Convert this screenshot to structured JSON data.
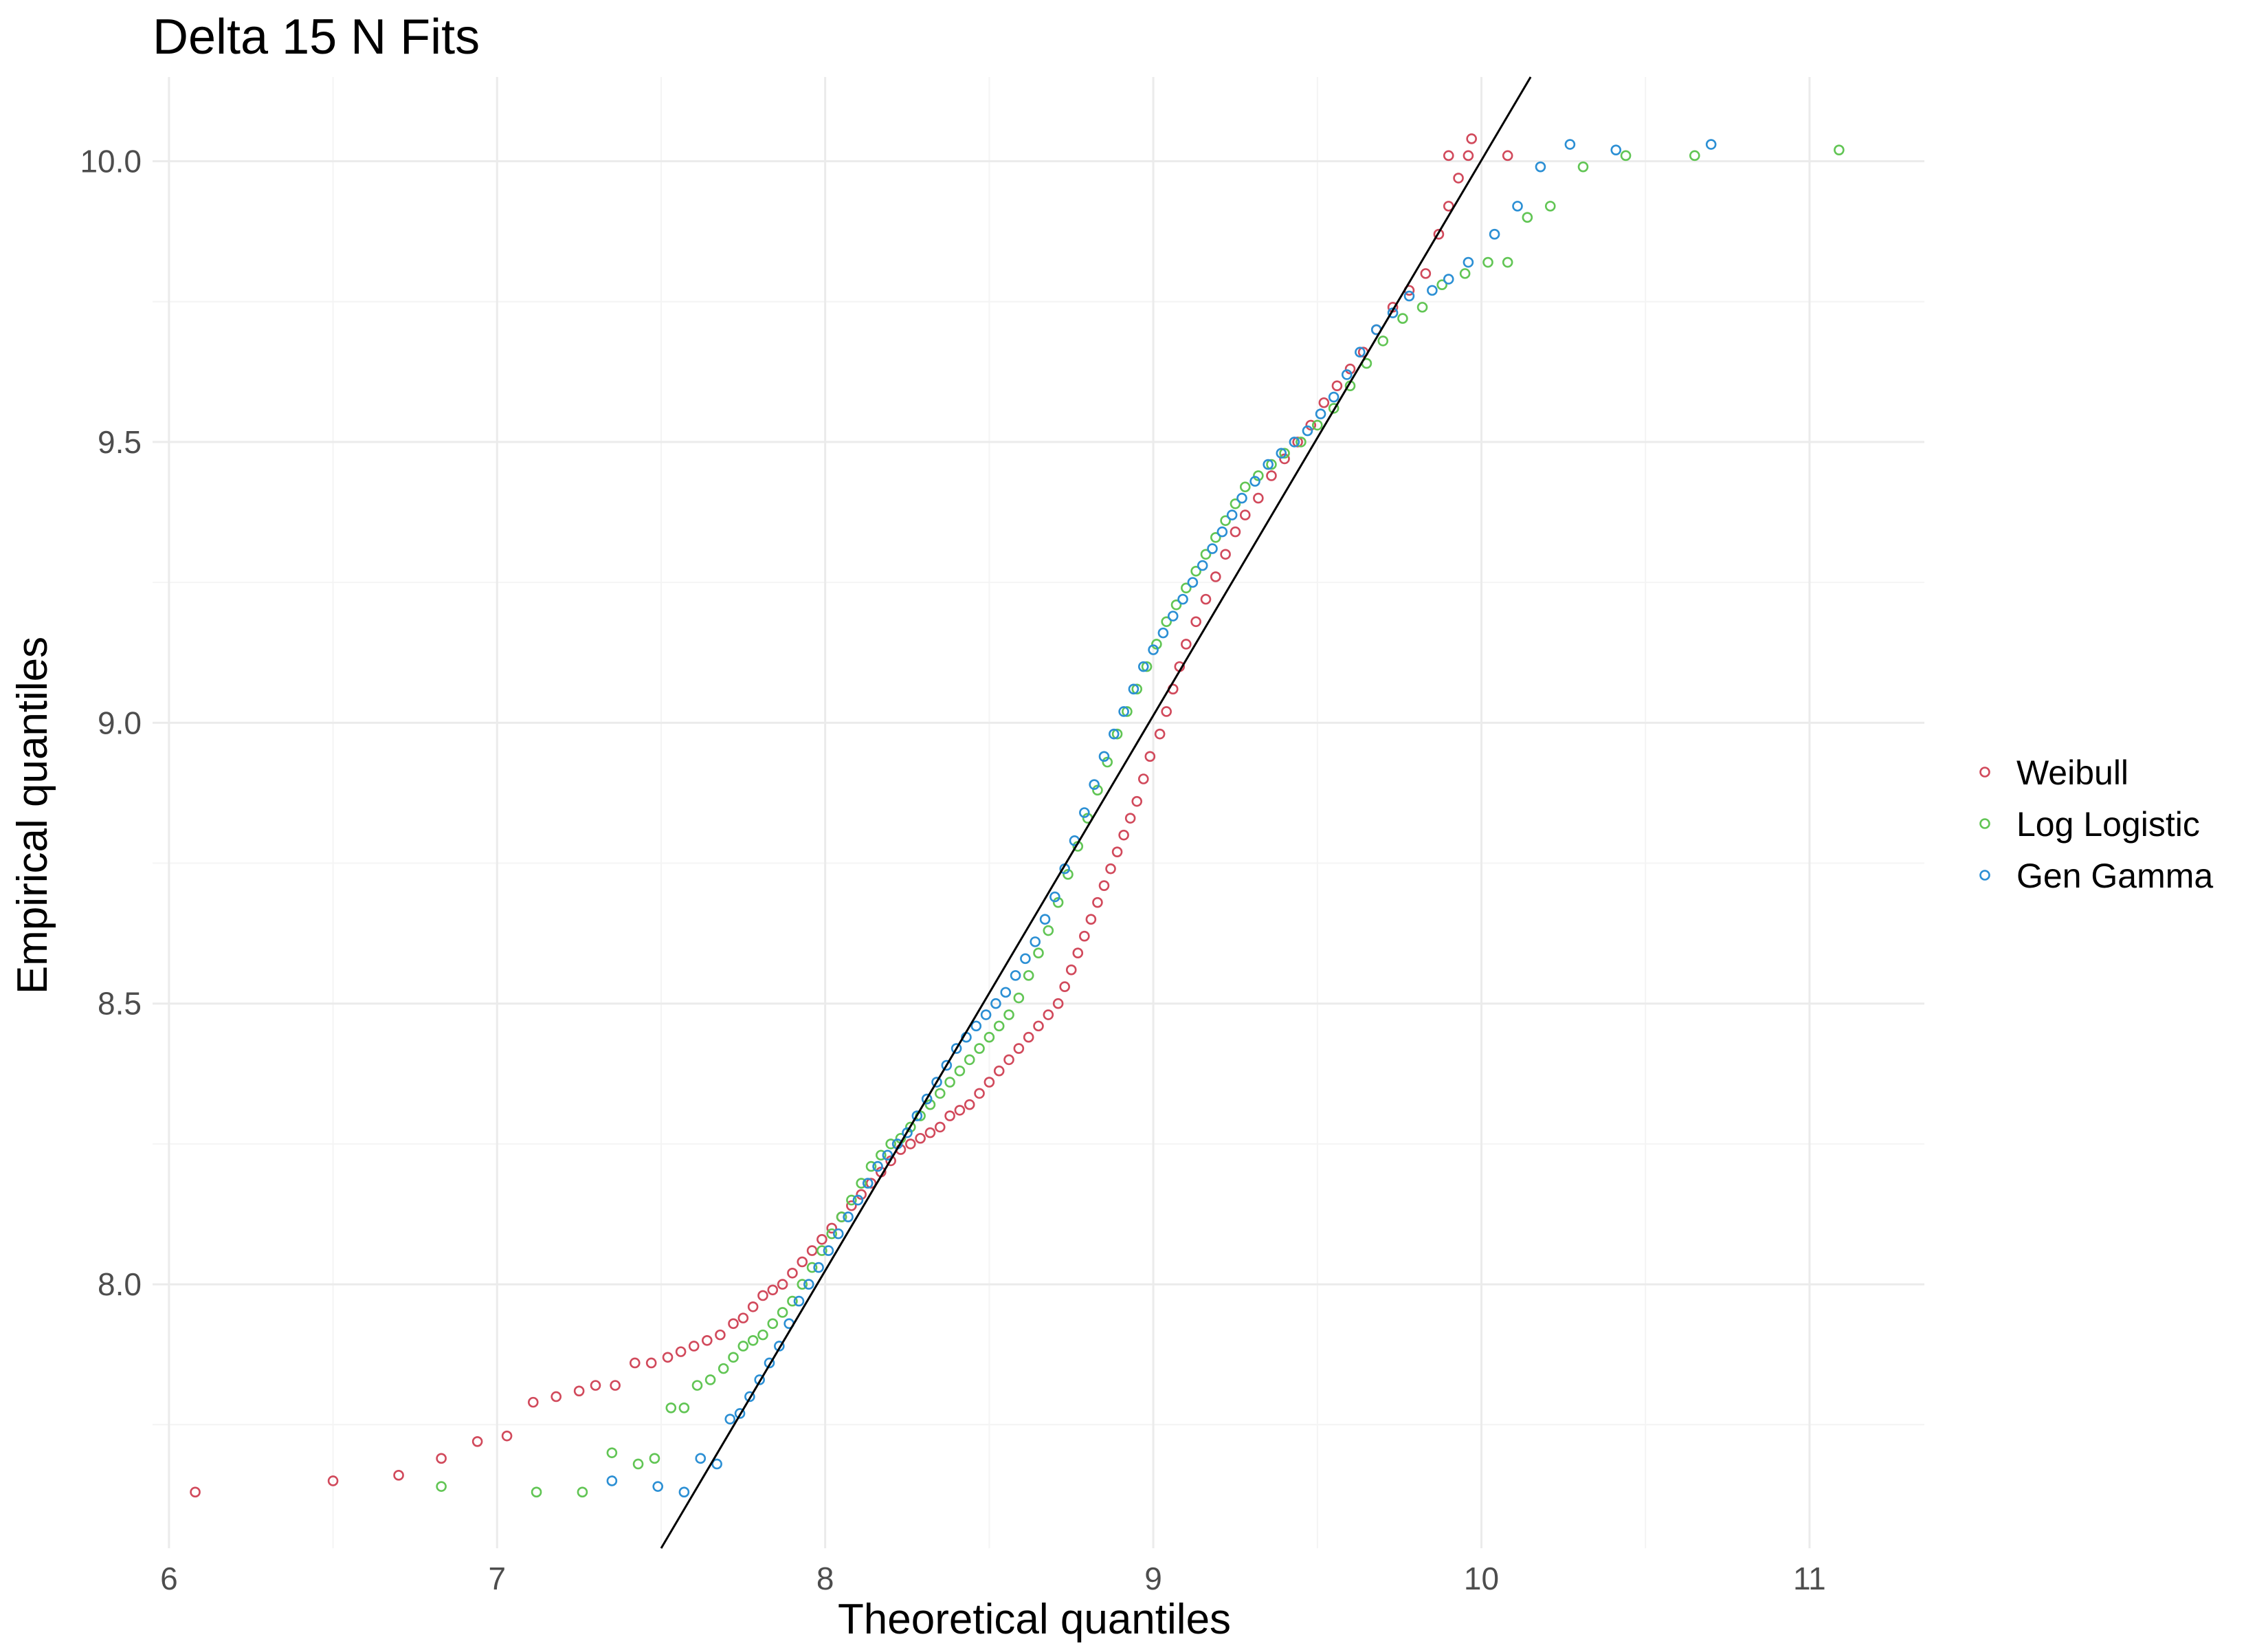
{
  "chart_data": {
    "type": "scatter",
    "title": "Delta 15 N Fits",
    "xlabel": "Theoretical quantiles",
    "ylabel": "Empirical quantiles",
    "xlim": [
      5.95,
      11.35
    ],
    "ylim": [
      7.53,
      10.15
    ],
    "x_ticks": [
      6,
      7,
      8,
      9,
      10,
      11
    ],
    "x_tick_labels": [
      "6",
      "7",
      "8",
      "9",
      "10",
      "11"
    ],
    "y_ticks": [
      8.0,
      8.5,
      9.0,
      9.5,
      10.0
    ],
    "y_tick_labels": [
      "8.0",
      "8.5",
      "9.0",
      "9.5",
      "10.0"
    ],
    "grid": true,
    "legend_position": "right",
    "reference_line": {
      "color": "#000000",
      "x": [
        7.5,
        10.15
      ],
      "y": [
        7.53,
        10.15
      ]
    },
    "series": [
      {
        "name": "Weibull",
        "color": "#d1495b",
        "points": [
          [
            6.08,
            7.63
          ],
          [
            6.5,
            7.65
          ],
          [
            6.7,
            7.66
          ],
          [
            6.83,
            7.69
          ],
          [
            6.94,
            7.72
          ],
          [
            7.03,
            7.73
          ],
          [
            7.11,
            7.79
          ],
          [
            7.18,
            7.8
          ],
          [
            7.25,
            7.81
          ],
          [
            7.3,
            7.82
          ],
          [
            7.36,
            7.82
          ],
          [
            7.42,
            7.86
          ],
          [
            7.47,
            7.86
          ],
          [
            7.52,
            7.87
          ],
          [
            7.56,
            7.88
          ],
          [
            7.6,
            7.89
          ],
          [
            7.64,
            7.9
          ],
          [
            7.68,
            7.91
          ],
          [
            7.72,
            7.93
          ],
          [
            7.75,
            7.94
          ],
          [
            7.78,
            7.96
          ],
          [
            7.81,
            7.98
          ],
          [
            7.84,
            7.99
          ],
          [
            7.87,
            8.0
          ],
          [
            7.9,
            8.02
          ],
          [
            7.93,
            8.04
          ],
          [
            7.96,
            8.06
          ],
          [
            7.99,
            8.08
          ],
          [
            8.02,
            8.1
          ],
          [
            8.05,
            8.12
          ],
          [
            8.08,
            8.14
          ],
          [
            8.11,
            8.16
          ],
          [
            8.14,
            8.18
          ],
          [
            8.17,
            8.2
          ],
          [
            8.2,
            8.22
          ],
          [
            8.23,
            8.24
          ],
          [
            8.26,
            8.25
          ],
          [
            8.29,
            8.26
          ],
          [
            8.32,
            8.27
          ],
          [
            8.35,
            8.28
          ],
          [
            8.38,
            8.3
          ],
          [
            8.41,
            8.31
          ],
          [
            8.44,
            8.32
          ],
          [
            8.47,
            8.34
          ],
          [
            8.5,
            8.36
          ],
          [
            8.53,
            8.38
          ],
          [
            8.56,
            8.4
          ],
          [
            8.59,
            8.42
          ],
          [
            8.62,
            8.44
          ],
          [
            8.65,
            8.46
          ],
          [
            8.68,
            8.48
          ],
          [
            8.71,
            8.5
          ],
          [
            8.73,
            8.53
          ],
          [
            8.75,
            8.56
          ],
          [
            8.77,
            8.59
          ],
          [
            8.79,
            8.62
          ],
          [
            8.81,
            8.65
          ],
          [
            8.83,
            8.68
          ],
          [
            8.85,
            8.71
          ],
          [
            8.87,
            8.74
          ],
          [
            8.89,
            8.77
          ],
          [
            8.91,
            8.8
          ],
          [
            8.93,
            8.83
          ],
          [
            8.95,
            8.86
          ],
          [
            8.97,
            8.9
          ],
          [
            8.99,
            8.94
          ],
          [
            9.02,
            8.98
          ],
          [
            9.04,
            9.02
          ],
          [
            9.06,
            9.06
          ],
          [
            9.08,
            9.1
          ],
          [
            9.1,
            9.14
          ],
          [
            9.13,
            9.18
          ],
          [
            9.16,
            9.22
          ],
          [
            9.19,
            9.26
          ],
          [
            9.22,
            9.3
          ],
          [
            9.25,
            9.34
          ],
          [
            9.28,
            9.37
          ],
          [
            9.32,
            9.4
          ],
          [
            9.36,
            9.44
          ],
          [
            9.4,
            9.47
          ],
          [
            9.44,
            9.5
          ],
          [
            9.48,
            9.53
          ],
          [
            9.52,
            9.57
          ],
          [
            9.56,
            9.6
          ],
          [
            9.6,
            9.63
          ],
          [
            9.64,
            9.66
          ],
          [
            9.68,
            9.7
          ],
          [
            9.73,
            9.74
          ],
          [
            9.78,
            9.77
          ],
          [
            9.83,
            9.8
          ],
          [
            9.87,
            9.87
          ],
          [
            9.9,
            9.92
          ],
          [
            9.93,
            9.97
          ],
          [
            9.96,
            10.01
          ],
          [
            9.9,
            10.01
          ],
          [
            9.97,
            10.04
          ],
          [
            10.08,
            10.01
          ]
        ]
      },
      {
        "name": "Log Logistic",
        "color": "#61c554",
        "points": [
          [
            6.83,
            7.64
          ],
          [
            7.12,
            7.63
          ],
          [
            7.26,
            7.63
          ],
          [
            7.35,
            7.7
          ],
          [
            7.43,
            7.68
          ],
          [
            7.48,
            7.69
          ],
          [
            7.53,
            7.78
          ],
          [
            7.57,
            7.78
          ],
          [
            7.61,
            7.82
          ],
          [
            7.65,
            7.83
          ],
          [
            7.69,
            7.85
          ],
          [
            7.72,
            7.87
          ],
          [
            7.75,
            7.89
          ],
          [
            7.78,
            7.9
          ],
          [
            7.81,
            7.91
          ],
          [
            7.84,
            7.93
          ],
          [
            7.87,
            7.95
          ],
          [
            7.9,
            7.97
          ],
          [
            7.93,
            8.0
          ],
          [
            7.96,
            8.03
          ],
          [
            7.99,
            8.06
          ],
          [
            8.02,
            8.09
          ],
          [
            8.05,
            8.12
          ],
          [
            8.08,
            8.15
          ],
          [
            8.11,
            8.18
          ],
          [
            8.14,
            8.21
          ],
          [
            8.17,
            8.23
          ],
          [
            8.2,
            8.25
          ],
          [
            8.23,
            8.26
          ],
          [
            8.26,
            8.28
          ],
          [
            8.29,
            8.3
          ],
          [
            8.32,
            8.32
          ],
          [
            8.35,
            8.34
          ],
          [
            8.38,
            8.36
          ],
          [
            8.41,
            8.38
          ],
          [
            8.44,
            8.4
          ],
          [
            8.47,
            8.42
          ],
          [
            8.5,
            8.44
          ],
          [
            8.53,
            8.46
          ],
          [
            8.56,
            8.48
          ],
          [
            8.59,
            8.51
          ],
          [
            8.62,
            8.55
          ],
          [
            8.65,
            8.59
          ],
          [
            8.68,
            8.63
          ],
          [
            8.71,
            8.68
          ],
          [
            8.74,
            8.73
          ],
          [
            8.77,
            8.78
          ],
          [
            8.8,
            8.83
          ],
          [
            8.83,
            8.88
          ],
          [
            8.86,
            8.93
          ],
          [
            8.89,
            8.98
          ],
          [
            8.92,
            9.02
          ],
          [
            8.95,
            9.06
          ],
          [
            8.98,
            9.1
          ],
          [
            9.01,
            9.14
          ],
          [
            9.04,
            9.18
          ],
          [
            9.07,
            9.21
          ],
          [
            9.1,
            9.24
          ],
          [
            9.13,
            9.27
          ],
          [
            9.16,
            9.3
          ],
          [
            9.19,
            9.33
          ],
          [
            9.22,
            9.36
          ],
          [
            9.25,
            9.39
          ],
          [
            9.28,
            9.42
          ],
          [
            9.32,
            9.44
          ],
          [
            9.36,
            9.46
          ],
          [
            9.4,
            9.48
          ],
          [
            9.45,
            9.5
          ],
          [
            9.5,
            9.53
          ],
          [
            9.55,
            9.56
          ],
          [
            9.6,
            9.6
          ],
          [
            9.65,
            9.64
          ],
          [
            9.7,
            9.68
          ],
          [
            9.76,
            9.72
          ],
          [
            9.82,
            9.74
          ],
          [
            9.88,
            9.78
          ],
          [
            9.95,
            9.8
          ],
          [
            10.02,
            9.82
          ],
          [
            10.08,
            9.82
          ],
          [
            10.14,
            9.9
          ],
          [
            10.21,
            9.92
          ],
          [
            10.31,
            9.99
          ],
          [
            10.44,
            10.01
          ],
          [
            10.65,
            10.01
          ],
          [
            11.09,
            10.02
          ]
        ]
      },
      {
        "name": "Gen Gamma",
        "color": "#2b8fd4",
        "points": [
          [
            7.35,
            7.65
          ],
          [
            7.49,
            7.64
          ],
          [
            7.57,
            7.63
          ],
          [
            7.62,
            7.69
          ],
          [
            7.67,
            7.68
          ],
          [
            7.71,
            7.76
          ],
          [
            7.74,
            7.77
          ],
          [
            7.77,
            7.8
          ],
          [
            7.8,
            7.83
          ],
          [
            7.83,
            7.86
          ],
          [
            7.86,
            7.89
          ],
          [
            7.89,
            7.93
          ],
          [
            7.92,
            7.97
          ],
          [
            7.95,
            8.0
          ],
          [
            7.98,
            8.03
          ],
          [
            8.01,
            8.06
          ],
          [
            8.04,
            8.09
          ],
          [
            8.07,
            8.12
          ],
          [
            8.1,
            8.15
          ],
          [
            8.13,
            8.18
          ],
          [
            8.16,
            8.21
          ],
          [
            8.19,
            8.23
          ],
          [
            8.22,
            8.25
          ],
          [
            8.25,
            8.27
          ],
          [
            8.28,
            8.3
          ],
          [
            8.31,
            8.33
          ],
          [
            8.34,
            8.36
          ],
          [
            8.37,
            8.39
          ],
          [
            8.4,
            8.42
          ],
          [
            8.43,
            8.44
          ],
          [
            8.46,
            8.46
          ],
          [
            8.49,
            8.48
          ],
          [
            8.52,
            8.5
          ],
          [
            8.55,
            8.52
          ],
          [
            8.58,
            8.55
          ],
          [
            8.61,
            8.58
          ],
          [
            8.64,
            8.61
          ],
          [
            8.67,
            8.65
          ],
          [
            8.7,
            8.69
          ],
          [
            8.73,
            8.74
          ],
          [
            8.76,
            8.79
          ],
          [
            8.79,
            8.84
          ],
          [
            8.82,
            8.89
          ],
          [
            8.85,
            8.94
          ],
          [
            8.88,
            8.98
          ],
          [
            8.91,
            9.02
          ],
          [
            8.94,
            9.06
          ],
          [
            8.97,
            9.1
          ],
          [
            9.0,
            9.13
          ],
          [
            9.03,
            9.16
          ],
          [
            9.06,
            9.19
          ],
          [
            9.09,
            9.22
          ],
          [
            9.12,
            9.25
          ],
          [
            9.15,
            9.28
          ],
          [
            9.18,
            9.31
          ],
          [
            9.21,
            9.34
          ],
          [
            9.24,
            9.37
          ],
          [
            9.27,
            9.4
          ],
          [
            9.31,
            9.43
          ],
          [
            9.35,
            9.46
          ],
          [
            9.39,
            9.48
          ],
          [
            9.43,
            9.5
          ],
          [
            9.47,
            9.52
          ],
          [
            9.51,
            9.55
          ],
          [
            9.55,
            9.58
          ],
          [
            9.59,
            9.62
          ],
          [
            9.63,
            9.66
          ],
          [
            9.68,
            9.7
          ],
          [
            9.73,
            9.73
          ],
          [
            9.78,
            9.76
          ],
          [
            9.85,
            9.77
          ],
          [
            9.9,
            9.79
          ],
          [
            9.96,
            9.82
          ],
          [
            10.04,
            9.87
          ],
          [
            10.11,
            9.92
          ],
          [
            10.18,
            9.99
          ],
          [
            10.27,
            10.03
          ],
          [
            10.41,
            10.02
          ],
          [
            10.7,
            10.03
          ]
        ]
      }
    ]
  }
}
